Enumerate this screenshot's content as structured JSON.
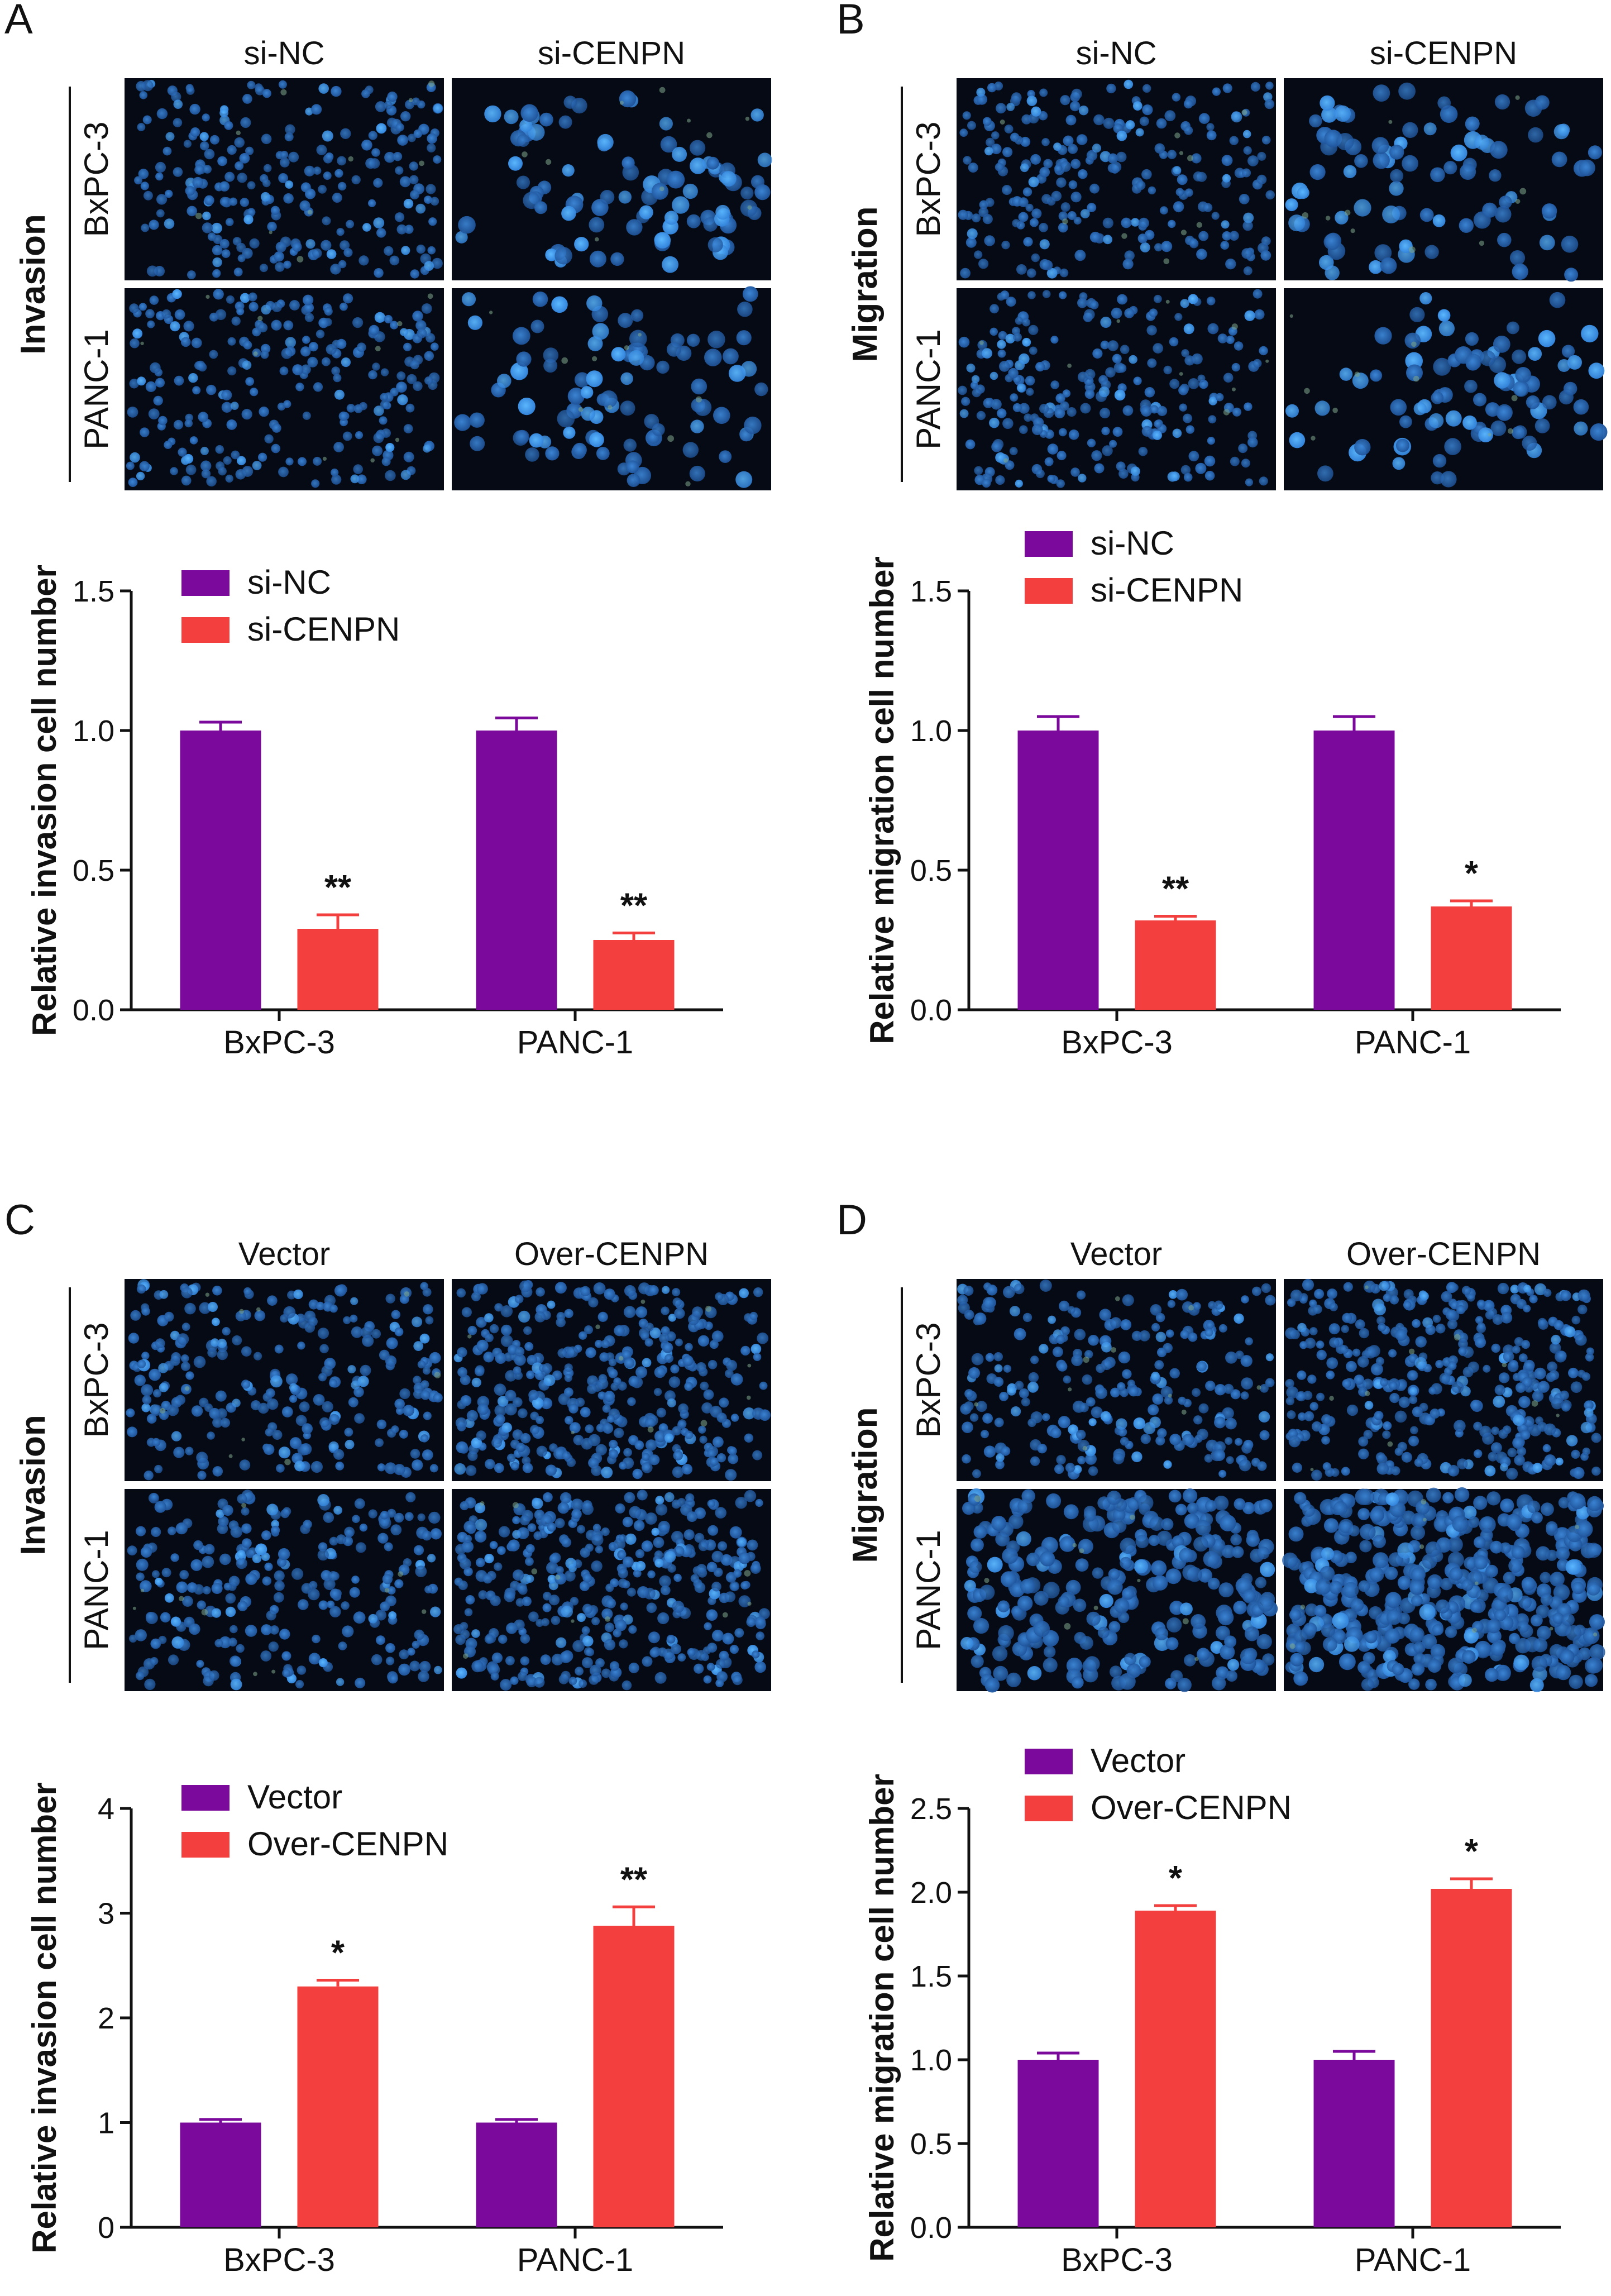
{
  "panels": {
    "A": {
      "letter": "A",
      "side_label": "Invasion",
      "columns": [
        "si-NC",
        "si-CENPN"
      ],
      "rows": [
        "BxPC-3",
        "PANC-1"
      ],
      "dense": false
    },
    "B": {
      "letter": "B",
      "side_label": "Migration",
      "columns": [
        "si-NC",
        "si-CENPN"
      ],
      "rows": [
        "BxPC-3",
        "PANC-1"
      ],
      "dense": false
    },
    "C": {
      "letter": "C",
      "side_label": "Invasion",
      "columns": [
        "Vector",
        "Over-CENPN"
      ],
      "rows": [
        "BxPC-3",
        "PANC-1"
      ],
      "dense": true
    },
    "D": {
      "letter": "D",
      "side_label": "Migration",
      "columns": [
        "Vector",
        "Over-CENPN"
      ],
      "rows": [
        "BxPC-3",
        "PANC-1"
      ],
      "dense": true
    }
  },
  "colors": {
    "series1": "#7b0a9c",
    "series2": "#f43f3f",
    "micrograph_bg": "#050a14",
    "nucleus": "#2f7fd8",
    "nucleus_bright": "#5cb8ff"
  },
  "chart_data": [
    {
      "panel": "A",
      "type": "bar",
      "categories": [
        "BxPC-3",
        "PANC-1"
      ],
      "ylabel": "Relative invasion cell number",
      "ylim": [
        0,
        1.5
      ],
      "yticks": [
        "0.0",
        "0.5",
        "1.0",
        "1.5"
      ],
      "series": [
        {
          "name": "si-NC",
          "values": [
            1.0,
            1.0
          ],
          "errors": [
            0.03,
            0.045
          ]
        },
        {
          "name": "si-CENPN",
          "values": [
            0.29,
            0.25
          ],
          "errors": [
            0.05,
            0.025
          ]
        }
      ],
      "annotations": [
        "**",
        "**"
      ],
      "legend": "top-left"
    },
    {
      "panel": "B",
      "type": "bar",
      "categories": [
        "BxPC-3",
        "PANC-1"
      ],
      "ylabel": "Relative migration cell number",
      "ylim": [
        0,
        1.5
      ],
      "yticks": [
        "0.0",
        "0.5",
        "1.0",
        "1.5"
      ],
      "series": [
        {
          "name": "si-NC",
          "values": [
            1.0,
            1.0
          ],
          "errors": [
            0.05,
            0.05
          ]
        },
        {
          "name": "si-CENPN",
          "values": [
            0.32,
            0.37
          ],
          "errors": [
            0.015,
            0.02
          ]
        }
      ],
      "annotations": [
        "**",
        "*"
      ],
      "legend": "top-left"
    },
    {
      "panel": "C",
      "type": "bar",
      "categories": [
        "BxPC-3",
        "PANC-1"
      ],
      "ylabel": "Relative invasion cell number",
      "ylim": [
        0,
        4
      ],
      "yticks": [
        "0",
        "1",
        "2",
        "3",
        "4"
      ],
      "series": [
        {
          "name": "Vector",
          "values": [
            1.0,
            1.0
          ],
          "errors": [
            0.03,
            0.03
          ]
        },
        {
          "name": "Over-CENPN",
          "values": [
            2.3,
            2.88
          ],
          "errors": [
            0.06,
            0.18
          ]
        }
      ],
      "annotations": [
        "*",
        "**"
      ],
      "legend": "top-left"
    },
    {
      "panel": "D",
      "type": "bar",
      "categories": [
        "BxPC-3",
        "PANC-1"
      ],
      "ylabel": "Relative migration cell number",
      "ylim": [
        0,
        2.5
      ],
      "yticks": [
        "0.0",
        "0.5",
        "1.0",
        "1.5",
        "2.0",
        "2.5"
      ],
      "series": [
        {
          "name": "Vector",
          "values": [
            1.0,
            1.0
          ],
          "errors": [
            0.04,
            0.05
          ]
        },
        {
          "name": "Over-CENPN",
          "values": [
            1.89,
            2.02
          ],
          "errors": [
            0.03,
            0.06
          ]
        }
      ],
      "annotations": [
        "*",
        "*"
      ],
      "legend": "top-left"
    }
  ]
}
